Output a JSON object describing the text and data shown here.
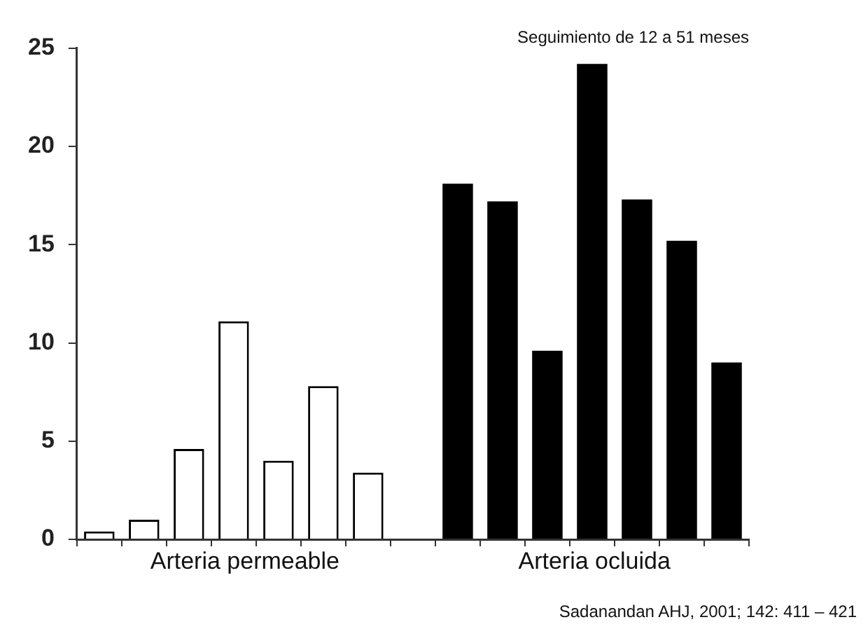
{
  "chart_data": {
    "type": "bar",
    "title": "Seguimiento de 12 a 51 meses",
    "categories": [
      null,
      null,
      null,
      null,
      null,
      null,
      null,
      null,
      null,
      null,
      null,
      null,
      null,
      null,
      null
    ],
    "values": [
      0.4,
      1.0,
      4.6,
      11.1,
      4.0,
      7.8,
      3.4,
      null,
      18.1,
      17.2,
      9.6,
      24.2,
      17.3,
      15.2,
      9.0
    ],
    "colors": [
      "#ffffff",
      "#ffffff",
      "#ffffff",
      "#ffffff",
      "#ffffff",
      "#ffffff",
      "#ffffff",
      "#ffffff",
      "#000000",
      "#000000",
      "#000000",
      "#000000",
      "#000000",
      "#000000",
      "#000000"
    ],
    "ylim": [
      0,
      25
    ],
    "yticks": [
      0,
      5,
      10,
      15,
      20,
      25
    ],
    "grid": false,
    "legend": false,
    "annotations": [
      "Arteria permeable",
      "Arteria ocluida",
      "Sadanandan AHJ, 2001; 142: 411 – 421"
    ]
  }
}
